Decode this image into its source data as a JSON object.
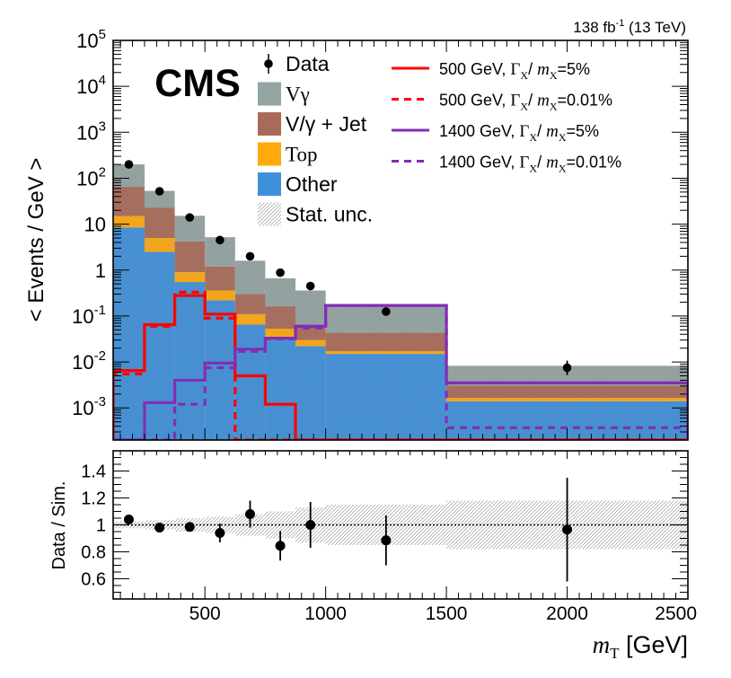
{
  "header": {
    "lumi_text": "138 fb",
    "lumi_exp": "-1",
    "energy_text": " (13 TeV)"
  },
  "cms_label": "CMS",
  "legend_left": [
    {
      "key": "data",
      "label": "Data",
      "kind": "marker",
      "serif": false
    },
    {
      "key": "vgamma",
      "label": "Vγ",
      "kind": "box",
      "color": "#94a4a2",
      "serif": true
    },
    {
      "key": "vgjet",
      "label": "V/γ + Jet",
      "kind": "box",
      "color": "#a96b59",
      "serif": false
    },
    {
      "key": "top",
      "label": "Top",
      "kind": "box",
      "color": "#ffa90e",
      "serif": true
    },
    {
      "key": "other",
      "label": "Other",
      "kind": "box",
      "color": "#3f90da",
      "serif": false
    },
    {
      "key": "statunc",
      "label": "Stat. unc.",
      "kind": "hatch",
      "serif": false
    }
  ],
  "legend_right": [
    {
      "key": "s500w",
      "mass": "500 GeV, ",
      "width": "=5%",
      "color": "#ff0000",
      "dashed": false
    },
    {
      "key": "s500n",
      "mass": "500 GeV, ",
      "width": "=0.01%",
      "color": "#ff0000",
      "dashed": true
    },
    {
      "key": "s1400w",
      "mass": "1400 GeV, ",
      "width": "=5%",
      "color": "#832db6",
      "dashed": false
    },
    {
      "key": "s1400n",
      "mass": "1400 GeV, ",
      "width": "=0.01%",
      "color": "#832db6",
      "dashed": true
    }
  ],
  "upper_ylabel": "< Events / GeV >",
  "lower_ylabel": "Data / Sim.",
  "xlabel_var": "m",
  "xlabel_sub": "T",
  "xlabel_unit": " [GeV]",
  "upper_yticks": [
    {
      "v": 0.001,
      "base": "10",
      "exp": "-3"
    },
    {
      "v": 0.01,
      "base": "10",
      "exp": "-2"
    },
    {
      "v": 0.1,
      "base": "10",
      "exp": "-1"
    },
    {
      "v": 1,
      "base": "1",
      "exp": ""
    },
    {
      "v": 10,
      "base": "10",
      "exp": ""
    },
    {
      "v": 100,
      "base": "10",
      "exp": "2"
    },
    {
      "v": 1000,
      "base": "10",
      "exp": "3"
    },
    {
      "v": 10000,
      "base": "10",
      "exp": "4"
    },
    {
      "v": 100000,
      "base": "10",
      "exp": "5"
    }
  ],
  "lower_yticks": [
    "0.6",
    "0.8",
    "1",
    "1.2",
    "1.4"
  ],
  "xticks": [
    "500",
    "1000",
    "1500",
    "2000",
    "2500"
  ],
  "chart_data": {
    "type": "bar",
    "x_unit": "GeV",
    "x_range": [
      120,
      2500
    ],
    "y_scale": "log",
    "y_range": [
      0.0002,
      100000
    ],
    "ratio_range": [
      0.45,
      1.55
    ],
    "bin_edges": [
      120,
      250,
      375,
      500,
      625,
      750,
      875,
      1000,
      1500,
      2500
    ],
    "stack_series": [
      {
        "name": "Other",
        "color": "#3f90da",
        "values": [
          8.5,
          2.5,
          0.55,
          0.22,
          0.065,
          0.035,
          0.022,
          0.015,
          0.0014
        ]
      },
      {
        "name": "Top",
        "color": "#ffa90e",
        "values": [
          6.5,
          2.5,
          0.35,
          0.14,
          0.045,
          0.018,
          0.008,
          0.0022,
          0.00025
        ]
      },
      {
        "name": "V/γ + Jet",
        "color": "#a96b59",
        "values": [
          50,
          18,
          3.3,
          0.84,
          0.19,
          0.11,
          0.03,
          0.026,
          0.0014
        ]
      },
      {
        "name": "Vγ",
        "color": "#94a4a2",
        "values": [
          135,
          30,
          11,
          4,
          1.3,
          0.5,
          0.3,
          0.12,
          0.0052
        ]
      }
    ],
    "data_points": {
      "name": "Data",
      "x": [
        185,
        312,
        437,
        562,
        687,
        812,
        937,
        1250,
        2000
      ],
      "y": [
        200,
        52,
        14,
        4.5,
        2.0,
        0.88,
        0.45,
        0.125,
        0.0075
      ],
      "yerr_lo": [
        0,
        0,
        0,
        0,
        0,
        0,
        0,
        0,
        0.0023
      ],
      "yerr_hi": [
        0,
        0,
        0,
        0,
        0,
        0,
        0,
        0,
        0.0032
      ]
    },
    "signals": [
      {
        "name": "500 GeV, Γ_X/m_X=5%",
        "color": "#ff0000",
        "dashed": false,
        "values": [
          0.0065,
          0.065,
          0.28,
          0.11,
          0.005,
          0.0012,
          0.0002,
          0.0002,
          0.0002
        ]
      },
      {
        "name": "500 GeV, Γ_X/m_X=0.01%",
        "color": "#ff0000",
        "dashed": true,
        "values": [
          0.0055,
          0.06,
          0.33,
          0.09,
          0.0002,
          0.0002,
          0.0002,
          0.0002,
          0.0002
        ]
      },
      {
        "name": "1400 GeV, Γ_X/m_X=5%",
        "color": "#832db6",
        "dashed": false,
        "values": [
          0.0002,
          0.0013,
          0.004,
          0.0095,
          0.019,
          0.033,
          0.06,
          0.17,
          0.0035
        ]
      },
      {
        "name": "1400 GeV, Γ_X/m_X=0.01%",
        "color": "#832db6",
        "dashed": true,
        "values": [
          0.0002,
          0.0002,
          0.0012,
          0.0075,
          0.017,
          0.032,
          0.055,
          0.17,
          0.00037
        ]
      }
    ],
    "ratio": {
      "x": [
        185,
        312,
        437,
        562,
        687,
        812,
        937,
        1250,
        2000
      ],
      "y": [
        1.04,
        0.98,
        0.985,
        0.94,
        1.08,
        0.845,
        1.0,
        0.885,
        0.965
      ],
      "err": [
        0.025,
        0.02,
        0.025,
        0.07,
        0.1,
        0.11,
        0.17,
        0.185,
        0.385
      ],
      "stat_band": [
        0.025,
        0.035,
        0.05,
        0.06,
        0.08,
        0.1,
        0.13,
        0.15,
        0.18
      ]
    }
  }
}
